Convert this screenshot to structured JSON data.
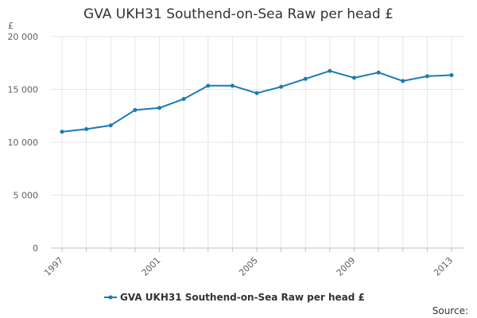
{
  "chart_data": {
    "type": "line",
    "title": "GVA UKH31 Southend-on-Sea Raw per head £",
    "ylabel": "£",
    "xlabel": "",
    "xlim": [
      1997,
      2013
    ],
    "ylim": [
      0,
      20000
    ],
    "x_ticks": [
      1997,
      2001,
      2005,
      2009,
      2013
    ],
    "y_ticks": [
      0,
      5000,
      10000,
      15000,
      20000
    ],
    "y_tick_labels": [
      "0",
      "5 000",
      "10 000",
      "15 000",
      "20 000"
    ],
    "grid": true,
    "legend_position": "bottom",
    "series": [
      {
        "name": "GVA UKH31 Southend-on-Sea Raw per head £",
        "color": "#1a7ab8",
        "x": [
          1997,
          1998,
          1999,
          2000,
          2001,
          2002,
          2003,
          2004,
          2005,
          2006,
          2007,
          2008,
          2009,
          2010,
          2011,
          2012,
          2013
        ],
        "values": [
          11000,
          11250,
          11600,
          13050,
          13250,
          14100,
          15350,
          15350,
          14650,
          15250,
          16000,
          16750,
          16100,
          16600,
          15800,
          16250,
          16350
        ]
      }
    ]
  },
  "source_label": "Source:",
  "colors": {
    "grid": "#e6e6e6",
    "axis": "#c0c0c0",
    "text": "#333333",
    "tick_text": "#606060"
  }
}
